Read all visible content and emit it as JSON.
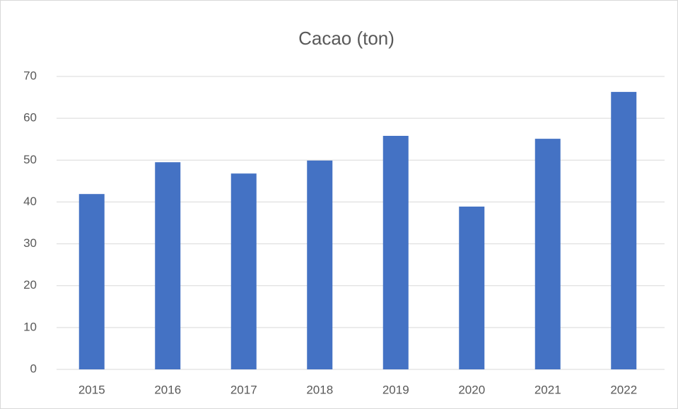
{
  "chart_data": {
    "type": "bar",
    "title": "Cacao (ton)",
    "categories": [
      "2015",
      "2016",
      "2017",
      "2018",
      "2019",
      "2020",
      "2021",
      "2022"
    ],
    "values": [
      41.9,
      49.5,
      46.8,
      49.9,
      55.8,
      38.9,
      55.1,
      66.3
    ],
    "color": "#4472c4",
    "ylim": [
      0,
      70
    ],
    "yticks": [
      0,
      10,
      20,
      30,
      40,
      50,
      60,
      70
    ],
    "grid": true
  }
}
